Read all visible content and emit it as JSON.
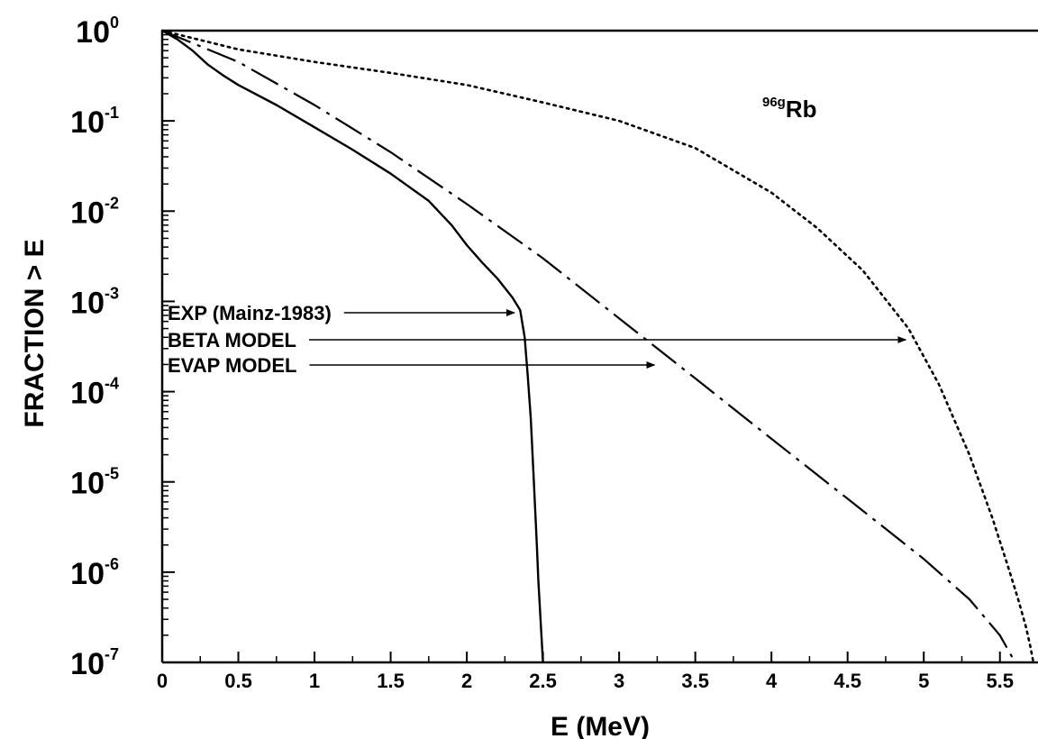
{
  "chart_data": {
    "type": "line",
    "title": "",
    "xlabel": "E (MeV)",
    "ylabel": "FRACTION > E",
    "xlim": [
      0,
      5.75
    ],
    "ylim": [
      1e-07,
      1
    ],
    "yscale": "log",
    "grid": false,
    "x_ticks": [
      "0",
      "0.5",
      "1",
      "1.5",
      "2",
      "2.5",
      "3",
      "3.5",
      "4",
      "4.5",
      "5",
      "5.5"
    ],
    "x_tick_values": [
      0,
      0.5,
      1,
      1.5,
      2,
      2.5,
      3,
      3.5,
      4,
      4.5,
      5,
      5.5
    ],
    "y_ticks": [
      {
        "base": "10",
        "exp": "0",
        "value": 1
      },
      {
        "base": "10",
        "exp": "-1",
        "value": 0.1
      },
      {
        "base": "10",
        "exp": "-2",
        "value": 0.01
      },
      {
        "base": "10",
        "exp": "-3",
        "value": 0.001
      },
      {
        "base": "10",
        "exp": "-4",
        "value": 0.0001
      },
      {
        "base": "10",
        "exp": "-5",
        "value": 1e-05
      },
      {
        "base": "10",
        "exp": "-6",
        "value": 1e-06
      },
      {
        "base": "10",
        "exp": "-7",
        "value": 1e-07
      }
    ],
    "isotope_label": {
      "superscript": "96g",
      "text": "Rb"
    },
    "series": [
      {
        "name": "EXP (Mainz-1983)",
        "style": "solid",
        "x": [
          0,
          0.1,
          0.2,
          0.3,
          0.4,
          0.5,
          0.75,
          1.0,
          1.25,
          1.5,
          1.75,
          1.9,
          2.0,
          2.1,
          2.2,
          2.3,
          2.35,
          2.38,
          2.4,
          2.42,
          2.44,
          2.46,
          2.47,
          2.48,
          2.49,
          2.5
        ],
        "y": [
          1.0,
          0.8,
          0.6,
          0.42,
          0.32,
          0.25,
          0.15,
          0.085,
          0.048,
          0.026,
          0.013,
          0.007,
          0.0042,
          0.0027,
          0.0018,
          0.0011,
          0.0008,
          0.0004,
          0.00015,
          5e-05,
          1e-05,
          2e-06,
          8e-07,
          4e-07,
          2e-07,
          1e-07
        ]
      },
      {
        "name": "EVAP MODEL",
        "style": "dashdot",
        "x": [
          0,
          0.5,
          1.0,
          1.5,
          2.0,
          2.5,
          3.0,
          3.5,
          4.0,
          4.5,
          5.0,
          5.3,
          5.5,
          5.6
        ],
        "y": [
          1.0,
          0.45,
          0.15,
          0.045,
          0.012,
          0.003,
          0.00065,
          0.00014,
          3e-05,
          6.5e-06,
          1.4e-06,
          5e-07,
          2e-07,
          1e-07
        ]
      },
      {
        "name": "BETA MODEL",
        "style": "dotted",
        "x": [
          0,
          0.5,
          1.0,
          1.5,
          2.0,
          2.5,
          3.0,
          3.5,
          4.0,
          4.3,
          4.6,
          4.9,
          5.1,
          5.3,
          5.45,
          5.55,
          5.62,
          5.67,
          5.7,
          5.72
        ],
        "y": [
          1.0,
          0.62,
          0.45,
          0.34,
          0.25,
          0.16,
          0.1,
          0.05,
          0.016,
          0.0065,
          0.0022,
          0.0005,
          0.00012,
          2e-05,
          4e-06,
          1.2e-06,
          5e-07,
          2.5e-07,
          1.5e-07,
          1e-07
        ]
      }
    ],
    "annotations": [
      {
        "text": "EXP (Mainz-1983)",
        "target_series": "EXP (Mainz-1983)",
        "target_x": 2.33,
        "target_y": 0.0008
      },
      {
        "text": "BETA MODEL",
        "target_series": "BETA MODEL",
        "target_x": 4.9,
        "target_y": 0.00045
      },
      {
        "text": "EVAP MODEL",
        "target_series": "EVAP MODEL",
        "target_x": 3.25,
        "target_y": 0.00022
      }
    ]
  }
}
